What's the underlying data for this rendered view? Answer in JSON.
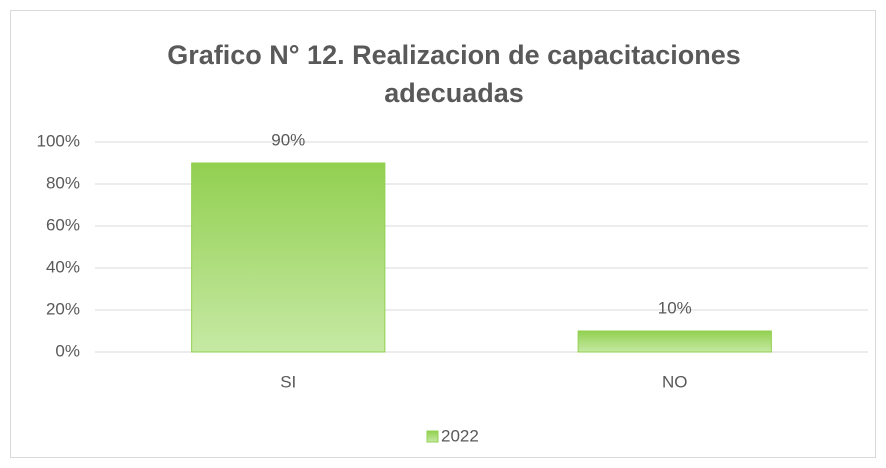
{
  "chart_data": {
    "type": "bar",
    "title": "Grafico N° 12. Realizacion de capacitaciones adecuadas",
    "categories": [
      "SI",
      "NO"
    ],
    "series": [
      {
        "name": "2022",
        "color": "#92d050",
        "values": [
          90,
          10
        ],
        "value_labels": [
          "90%",
          "10%"
        ]
      }
    ],
    "ylim": [
      0,
      100
    ],
    "yticks": [
      {
        "value": 0,
        "label": "0%"
      },
      {
        "value": 20,
        "label": "20%"
      },
      {
        "value": 40,
        "label": "40%"
      },
      {
        "value": 60,
        "label": "60%"
      },
      {
        "value": 80,
        "label": "80%"
      },
      {
        "value": 100,
        "label": "100%"
      }
    ],
    "grid": true,
    "legend": "bottom"
  }
}
